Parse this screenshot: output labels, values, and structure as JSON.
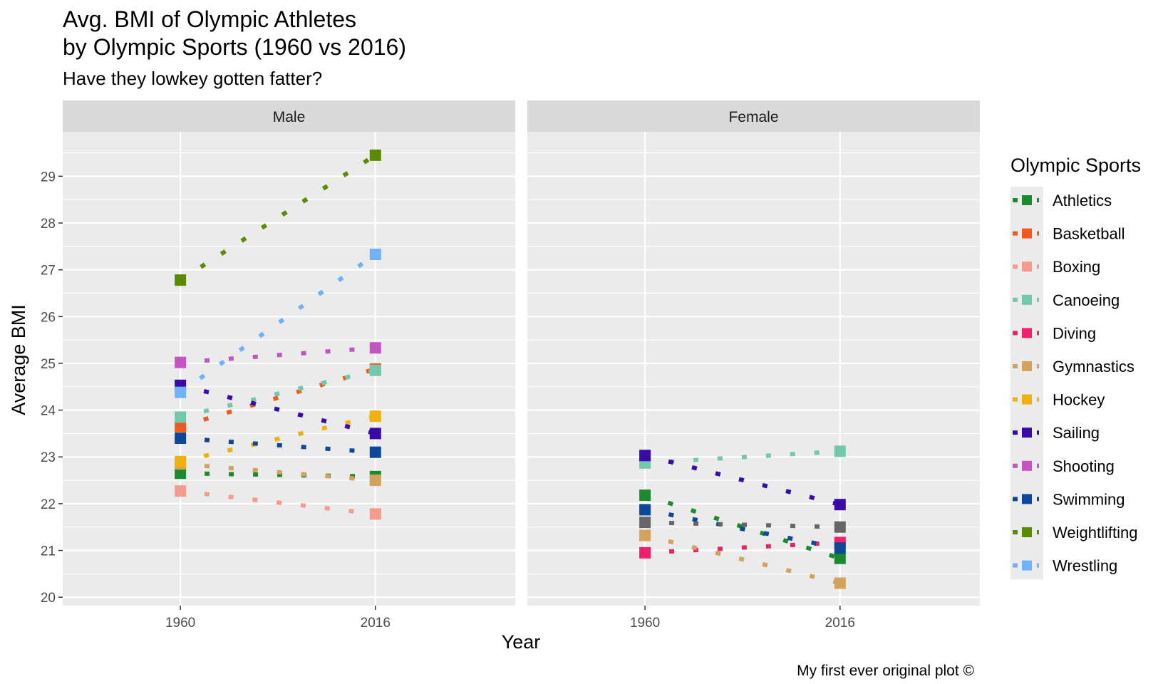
{
  "chart_data": {
    "type": "line",
    "title_line1": "Avg. BMI of Olympic Athletes",
    "title_line2": "by Olympic Sports (1960 vs 2016)",
    "subtitle": "Have they lowkey gotten fatter?",
    "xlabel": "Year",
    "ylabel": "Average BMI",
    "caption": "My first ever original plot ©",
    "legend_title": "Olympic Sports",
    "legend_position": "right",
    "x_categories": [
      "1960",
      "2016"
    ],
    "y_ticks": [
      20,
      21,
      22,
      23,
      24,
      25,
      26,
      27,
      28,
      29
    ],
    "ylim": [
      19.82,
      29.95
    ],
    "grid": true,
    "line_style": "dotted",
    "panels": [
      {
        "label": "Male",
        "series": [
          {
            "name": "Athletics",
            "values": [
              22.65,
              22.58
            ]
          },
          {
            "name": "Basketball",
            "values": [
              23.65,
              24.88
            ]
          },
          {
            "name": "Boxing",
            "values": [
              22.27,
              21.78
            ]
          },
          {
            "name": "Canoeing",
            "values": [
              23.85,
              24.85
            ]
          },
          {
            "name": "Gymnastics",
            "values": [
              22.85,
              22.5
            ]
          },
          {
            "name": "Hockey",
            "values": [
              22.9,
              23.87
            ]
          },
          {
            "name": "Sailing",
            "values": [
              24.53,
              23.5
            ]
          },
          {
            "name": "Shooting",
            "values": [
              25.02,
              25.33
            ]
          },
          {
            "name": "Swimming",
            "values": [
              23.4,
              23.1
            ]
          },
          {
            "name": "Weightlifting",
            "values": [
              26.78,
              29.45
            ]
          },
          {
            "name": "Wrestling",
            "values": [
              24.38,
              27.33
            ]
          }
        ]
      },
      {
        "label": "Female",
        "series": [
          {
            "name": "Athletics",
            "values": [
              22.18,
              20.83
            ]
          },
          {
            "name": "Canoeing",
            "values": [
              22.87,
              23.12
            ]
          },
          {
            "name": "Diving",
            "values": [
              20.95,
              21.17
            ]
          },
          {
            "name": "Gymnastics",
            "values": [
              21.32,
              20.3
            ]
          },
          {
            "name": "Sailing",
            "values": [
              23.03,
              21.98
            ]
          },
          {
            "name": "Swimming",
            "values": [
              21.87,
              21.05
            ]
          },
          {
            "name": "Shooting",
            "values": [
              21.6,
              21.5
            ],
            "color": "#666666"
          }
        ]
      }
    ],
    "colors": {
      "Athletics": "#1b8a2f",
      "Basketball": "#f05a1e",
      "Boxing": "#f59a8c",
      "Canoeing": "#72c7ac",
      "Diving": "#f21e6e",
      "Gymnastics": "#d1a35c",
      "Hockey": "#eeb111",
      "Sailing": "#3a0aa8",
      "Shooting": "#c454c1",
      "Swimming": "#0c4899",
      "Weightlifting": "#5a8a00",
      "Wrestling": "#6fb1fb"
    },
    "legend": [
      "Athletics",
      "Basketball",
      "Boxing",
      "Canoeing",
      "Diving",
      "Gymnastics",
      "Hockey",
      "Sailing",
      "Shooting",
      "Swimming",
      "Weightlifting",
      "Wrestling"
    ]
  }
}
